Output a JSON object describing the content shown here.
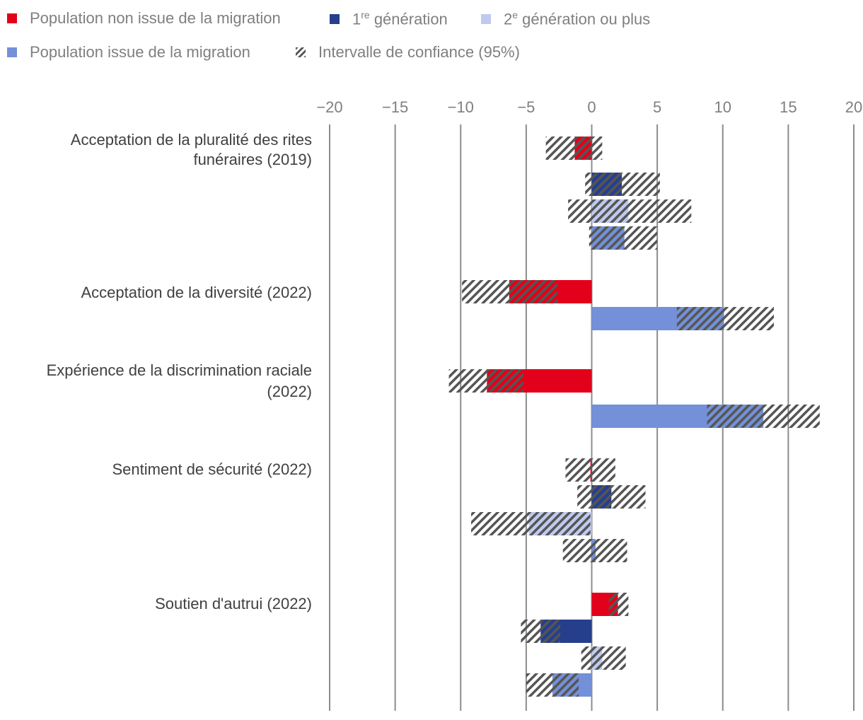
{
  "legend": {
    "items": [
      {
        "label": "Population non issue de la migration",
        "color": "#e2001a"
      },
      {
        "label_main": "1",
        "label_sup": "re",
        "label_rest": " génération",
        "color": "#263f8d"
      },
      {
        "label_main": "2",
        "label_sup": "e",
        "label_rest": " génération ou plus",
        "color": "#bfcaee"
      },
      {
        "label": "Population issue de la migration",
        "color": "#7390d8"
      },
      {
        "label": "Intervalle de confiance (95%)",
        "color": "#555555"
      }
    ]
  },
  "chart_data": {
    "type": "bar",
    "orientation": "horizontal",
    "xlim": [
      -20,
      20
    ],
    "xticks": [
      -20,
      -15,
      -10,
      -5,
      0,
      5,
      10,
      15,
      20
    ],
    "xtick_labels": [
      "−20",
      "−15",
      "−10",
      "−5",
      "0",
      "5",
      "10",
      "15",
      "20"
    ],
    "grid": true,
    "legend_position": "top",
    "series": [
      {
        "name": "Population non issue de la migration",
        "color": "#e2001a"
      },
      {
        "name": "1re génération",
        "color": "#263f8d"
      },
      {
        "name": "2e génération ou plus",
        "color": "#bfcaee"
      },
      {
        "name": "Population issue de la migration",
        "color": "#7390d8"
      }
    ],
    "groups": [
      {
        "label_lines": [
          "Acceptation de la pluralité des rites",
          "funéraires (2019)"
        ],
        "bars": [
          {
            "series": 0,
            "value": -1.3,
            "ci": [
              -3.5,
              0.8
            ]
          },
          {
            "series": 1,
            "value": 2.3,
            "ci": [
              -0.5,
              5.2
            ]
          },
          {
            "series": 2,
            "value": 2.8,
            "ci": [
              -1.8,
              7.6
            ]
          },
          {
            "series": 3,
            "value": 2.5,
            "ci": [
              -0.2,
              5.0
            ]
          }
        ]
      },
      {
        "label_lines": [
          "Acceptation de la diversité (2022)"
        ],
        "bars": [
          {
            "series": 0,
            "value": -6.3,
            "ci": [
              -9.9,
              -2.6
            ]
          },
          {
            "series": 3,
            "value": 10.1,
            "ci": [
              6.5,
              13.9
            ]
          }
        ]
      },
      {
        "label_lines": [
          "Expérience de la discrimination raciale",
          "(2022)"
        ],
        "bars": [
          {
            "series": 0,
            "value": -8.0,
            "ci": [
              -10.9,
              -5.2
            ]
          },
          {
            "series": 3,
            "value": 13.1,
            "ci": [
              8.8,
              17.4
            ]
          }
        ]
      },
      {
        "label_lines": [
          "Sentiment de sécurité (2022)"
        ],
        "bars": [
          {
            "series": 0,
            "value": -0.1,
            "ci": [
              -2.0,
              1.8
            ]
          },
          {
            "series": 1,
            "value": 1.5,
            "ci": [
              -1.1,
              4.1
            ]
          },
          {
            "series": 2,
            "value": -4.8,
            "ci": [
              -9.2,
              -0.1
            ]
          },
          {
            "series": 3,
            "value": 0.3,
            "ci": [
              -2.2,
              2.7
            ]
          }
        ]
      },
      {
        "label_lines": [
          "Soutien d'autrui (2022)"
        ],
        "bars": [
          {
            "series": 0,
            "value": 2.0,
            "ci": [
              1.3,
              2.8
            ]
          },
          {
            "series": 1,
            "value": -3.9,
            "ci": [
              -5.4,
              -2.4
            ]
          },
          {
            "series": 2,
            "value": 0.8,
            "ci": [
              -0.8,
              2.6
            ]
          },
          {
            "series": 3,
            "value": -3.0,
            "ci": [
              -5.0,
              -1.0
            ]
          }
        ]
      }
    ]
  }
}
